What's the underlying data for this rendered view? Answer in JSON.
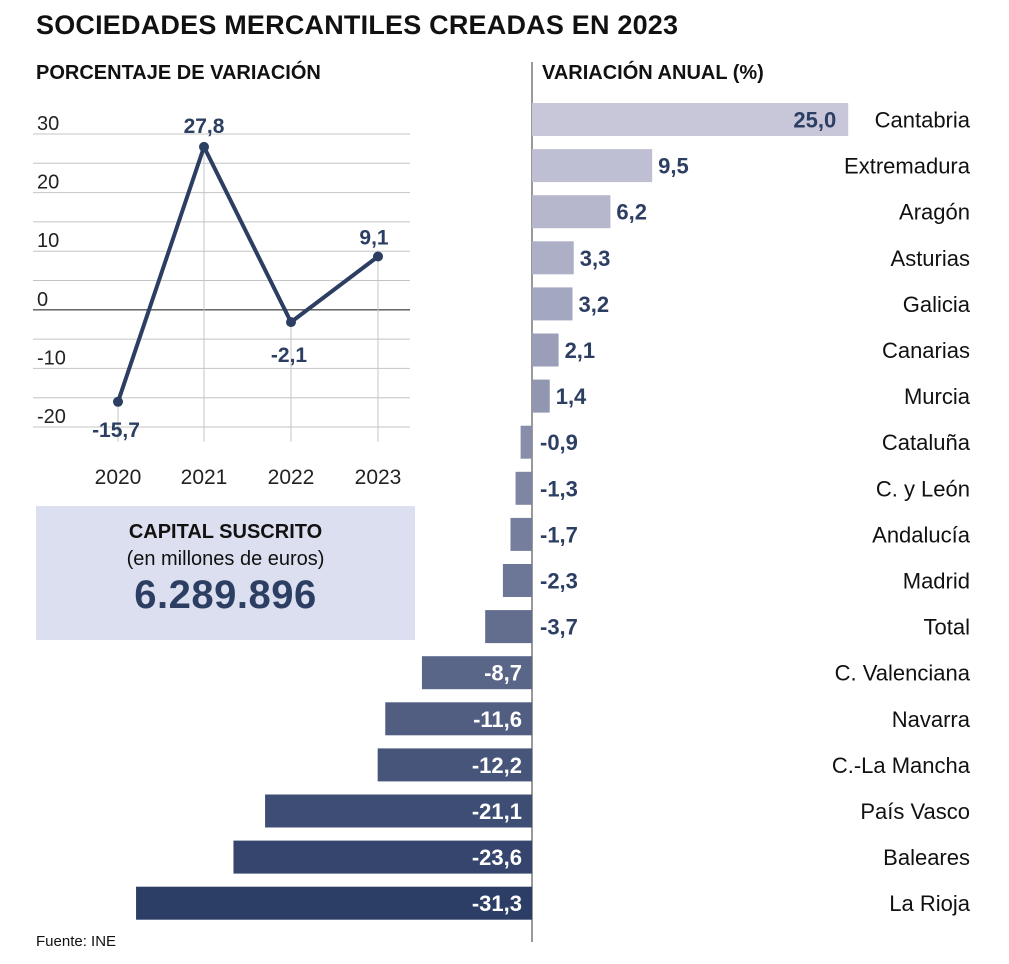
{
  "title": "SOCIEDADES MERCANTILES CREADAS EN 2023",
  "source": "Fuente: INE",
  "capital": {
    "title": "CAPITAL SUSCRITO",
    "subtitle": "(en millones de euros)",
    "value": "6.289.896"
  },
  "colors": {
    "line": "#2d3e63",
    "grid": "#c4c4c4",
    "bar_light": "#c8c7da",
    "bar_dark": "#2c3d66",
    "capital_bg": "#dcdff0"
  },
  "chart_data": [
    {
      "type": "line",
      "title": "PORCENTAJE DE VARIACIÓN",
      "x": [
        "2020",
        "2021",
        "2022",
        "2023"
      ],
      "values": [
        -15.7,
        27.8,
        -2.1,
        9.1
      ],
      "labels": [
        "-15,7",
        "27,8",
        "-2,1",
        "9,1"
      ],
      "y_ticks": [
        "30",
        "20",
        "10",
        "0",
        "-10",
        "-20"
      ],
      "ylim": [
        -20,
        30
      ],
      "grid": true
    },
    {
      "type": "bar",
      "orientation": "horizontal",
      "title": "VARIACIÓN ANUAL (%)",
      "categories": [
        "Cantabria",
        "Extremadura",
        "Aragón",
        "Asturias",
        "Galicia",
        "Canarias",
        "Murcia",
        "Cataluña",
        "C. y León",
        "Andalucía",
        "Madrid",
        "Total",
        "C. Valenciana",
        "Navarra",
        "C.-La Mancha",
        "País Vasco",
        "Baleares",
        "La Rioja"
      ],
      "values": [
        25.0,
        9.5,
        6.2,
        3.3,
        3.2,
        2.1,
        1.4,
        -0.9,
        -1.3,
        -1.7,
        -2.3,
        -3.7,
        -8.7,
        -11.6,
        -12.2,
        -21.1,
        -23.6,
        -31.3
      ],
      "labels": [
        "25,0",
        "9,5",
        "6,2",
        "3,3",
        "3,2",
        "2,1",
        "1,4",
        "-0,9",
        "-1,3",
        "-1,7",
        "-2,3",
        "-3,7",
        "-8,7",
        "-11,6",
        "-12,2",
        "-21,1",
        "-23,6",
        "-31,3"
      ]
    }
  ]
}
